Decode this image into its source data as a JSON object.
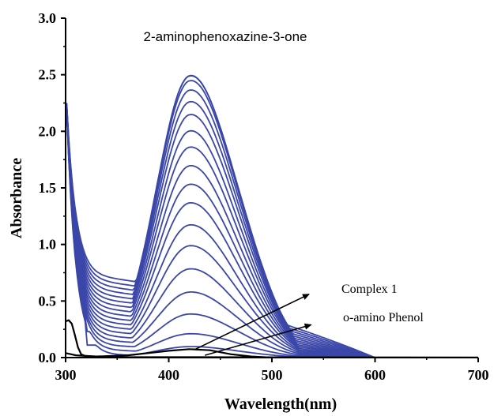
{
  "chart_data": {
    "type": "line",
    "title": "2-aminophenoxazine-3-one",
    "xlabel": "Wavelength(nm)",
    "ylabel": "Absorbance",
    "xlim": [
      300,
      700
    ],
    "ylim": [
      0.0,
      3.0
    ],
    "x_ticks": [
      "300",
      "400",
      "500",
      "600",
      "700"
    ],
    "y_ticks": [
      "0.0",
      "0.5",
      "1.0",
      "1.5",
      "2.0",
      "2.5",
      "3.0"
    ],
    "grid": false,
    "annotations": [
      {
        "text": "Complex 1",
        "points_to": "complex-1-curve"
      },
      {
        "text": "o-amino Phenol",
        "points_to": "o-aminophenol-curve"
      }
    ],
    "series_group": {
      "description_color": "#3a46a8",
      "peak_wavelength": 420,
      "peak_absorbances": [
        0.1,
        0.22,
        0.4,
        0.6,
        0.81,
        1.02,
        1.21,
        1.41,
        1.58,
        1.75,
        1.92,
        2.07,
        2.22,
        2.34,
        2.45,
        2.54,
        2.59,
        2.6
      ]
    },
    "complex_1": {
      "color": "#000000",
      "points": [
        [
          300,
          0.32
        ],
        [
          303,
          0.33
        ],
        [
          306,
          0.3
        ],
        [
          309,
          0.2
        ],
        [
          312,
          0.09
        ],
        [
          315,
          0.03
        ],
        [
          320,
          0.01
        ],
        [
          340,
          0.005
        ],
        [
          700,
          0.0
        ]
      ]
    },
    "o_aminophenol": {
      "color": "#000000",
      "points": [
        [
          300,
          0.04
        ],
        [
          310,
          0.02
        ],
        [
          330,
          0.01
        ],
        [
          360,
          0.02
        ],
        [
          380,
          0.04
        ],
        [
          400,
          0.06
        ],
        [
          420,
          0.075
        ],
        [
          440,
          0.065
        ],
        [
          460,
          0.03
        ],
        [
          480,
          0.01
        ],
        [
          500,
          0.0
        ],
        [
          700,
          0.0
        ]
      ]
    }
  }
}
